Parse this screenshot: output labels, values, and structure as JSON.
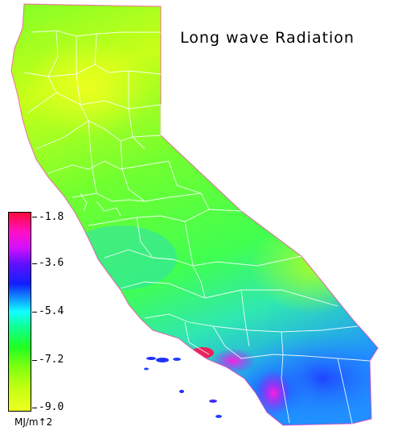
{
  "title": "Long wave Radiation",
  "legend": {
    "ticks": [
      "-1.8",
      "-3.6",
      "-5.4",
      "-7.2",
      "-9.0"
    ],
    "unit": "MJ/m↑2"
  },
  "colors": {
    "north": "#c8ff14",
    "central": "#5aff2a",
    "coast": "#1ed8d0",
    "south": "#1480ff",
    "hotspot": "#ff10d0",
    "peak": "#ff1050",
    "boundary": "#ffffff"
  }
}
